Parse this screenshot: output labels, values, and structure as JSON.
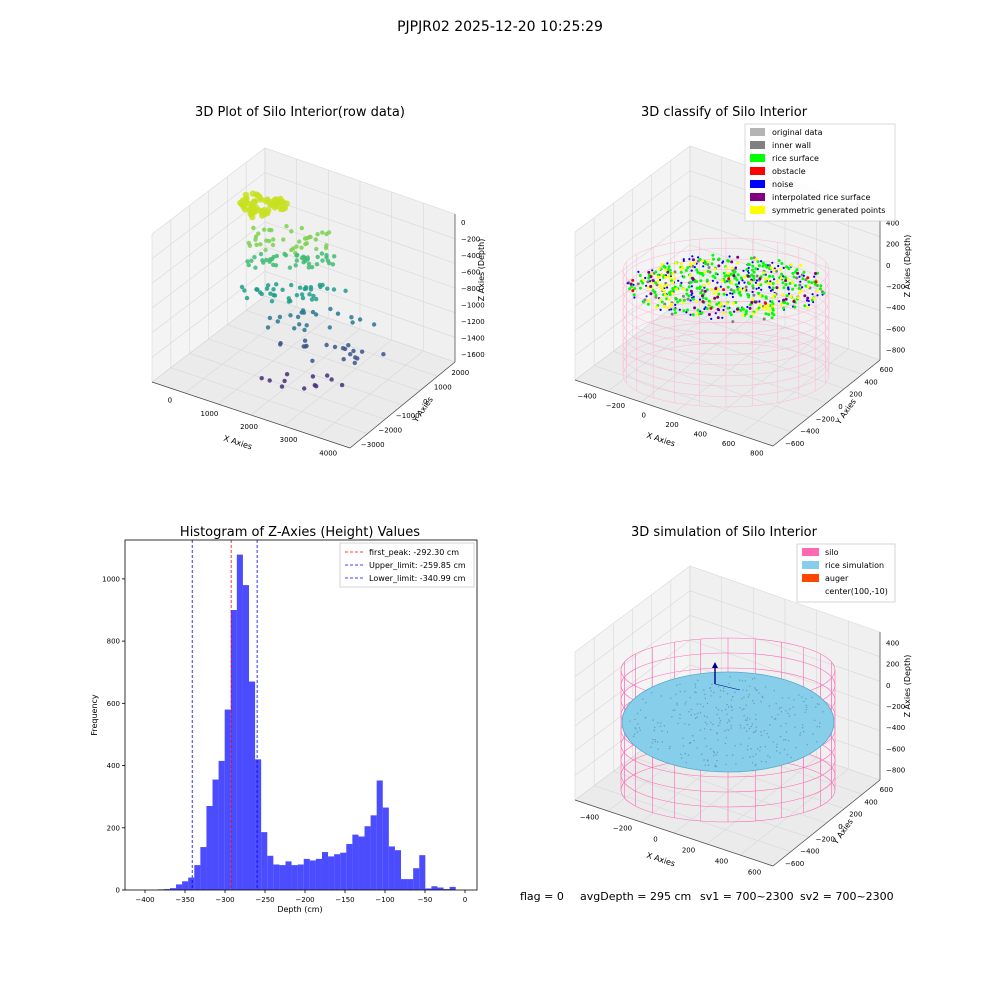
{
  "suptitle": "PJPJR02 2025-12-20 10:25:29",
  "footer": {
    "flag": "flag = 0",
    "avg_depth": "avgDepth = 295 cm",
    "sv1": "sv1 = 700~2300",
    "sv2": "sv2 = 700~2300"
  },
  "chart_data": [
    {
      "type": "scatter",
      "projection": "3d",
      "title": "3D Plot of Silo Interior(row data)",
      "xlabel": "X Axies",
      "ylabel": "Y Axies",
      "zlabel": "Z Axies (Depth)",
      "x_ticks": [
        "0",
        "1000",
        "2000",
        "3000",
        "4000"
      ],
      "y_ticks": [
        "2000",
        "1000",
        "0",
        "−1000",
        "−2000",
        "−3000"
      ],
      "z_ticks": [
        "0",
        "−200",
        "−400",
        "−600",
        "−800",
        "−1000",
        "−1200",
        "−1400",
        "−1600"
      ],
      "colormap": "viridis",
      "point_layers": [
        {
          "z": 0,
          "count": 60
        },
        {
          "z": -300,
          "count": 40
        },
        {
          "z": -600,
          "count": 44
        },
        {
          "z": -1000,
          "count": 40
        },
        {
          "z": -1300,
          "count": 22
        },
        {
          "z": -1550,
          "count": 20
        },
        {
          "z": -1700,
          "count": 12
        }
      ]
    },
    {
      "type": "scatter",
      "projection": "3d",
      "title": "3D classify of Silo Interior",
      "xlabel": "X Axies",
      "ylabel": "Y Axies",
      "zlabel": "Z Axies (Depth)",
      "x_ticks": [
        "−400",
        "−200",
        "0",
        "200",
        "400",
        "600",
        "800"
      ],
      "y_ticks": [
        "600",
        "400",
        "200",
        "0",
        "−200",
        "−400",
        "−600"
      ],
      "z_ticks": [
        "400",
        "200",
        "0",
        "−200",
        "−400",
        "−600",
        "−800"
      ],
      "legend": [
        {
          "label": "original data",
          "color": "#b4b4b4"
        },
        {
          "label": "inner wall",
          "color": "#808080"
        },
        {
          "label": "rice surface",
          "color": "#00ff00"
        },
        {
          "label": "obstacle",
          "color": "#ff0000"
        },
        {
          "label": "noise",
          "color": "#0000ff"
        },
        {
          "label": "interpolated rice surface",
          "color": "#800080"
        },
        {
          "label": "symmetric generated points",
          "color": "#ffff00"
        }
      ],
      "legend_loc": "upper right"
    },
    {
      "type": "bar",
      "title": "Histogram of Z-Axies (Height) Values",
      "xlabel": "Depth (cm)",
      "ylabel": "Frequency",
      "x_ticks": [
        -400,
        -350,
        -300,
        -250,
        -200,
        -150,
        -100,
        -50,
        0
      ],
      "y_ticks": [
        0,
        200,
        400,
        600,
        800,
        1000
      ],
      "xlim": [
        -425,
        15
      ],
      "ylim": [
        0,
        1125
      ],
      "bin_width": 7.6,
      "bin_start": -384,
      "values": [
        2,
        3,
        6,
        18,
        28,
        40,
        80,
        138,
        270,
        355,
        415,
        580,
        900,
        1078,
        980,
        670,
        420,
        186,
        110,
        82,
        80,
        92,
        80,
        82,
        100,
        95,
        100,
        122,
        108,
        115,
        120,
        148,
        178,
        172,
        205,
        240,
        352,
        265,
        140,
        128,
        35,
        35,
        70,
        112,
        5,
        12,
        8,
        3,
        10
      ],
      "bar_color": "#0000ff",
      "vlines": [
        {
          "label": "first_peak: -292.30 cm",
          "x": -292.3,
          "color": "#ff0000"
        },
        {
          "label": "Upper_limit: -259.85 cm",
          "x": -259.85,
          "color": "#0000ff"
        },
        {
          "label": "Lower_limit: -340.99 cm",
          "x": -340.99,
          "color": "#0000ff"
        }
      ],
      "legend_loc": "upper right"
    },
    {
      "type": "scatter",
      "projection": "3d",
      "title": "3D simulation of Silo Interior",
      "xlabel": "X Axies",
      "ylabel": "Y Axies",
      "zlabel": "Z Axies (Depth)",
      "x_ticks": [
        "−400",
        "−200",
        "0",
        "200",
        "400",
        "600"
      ],
      "y_ticks": [
        "600",
        "400",
        "200",
        "0",
        "−200",
        "−400",
        "−600"
      ],
      "z_ticks": [
        "400",
        "200",
        "0",
        "−200",
        "−400",
        "−600",
        "−800"
      ],
      "legend": [
        {
          "label": "silo",
          "color": "#ff69b4"
        },
        {
          "label": "rice simulation",
          "color": "#87ceeb"
        },
        {
          "label": "auger",
          "color": "#ff4500"
        },
        {
          "label": "center(100,-10)",
          "color": ""
        }
      ],
      "legend_loc": "upper right"
    }
  ]
}
